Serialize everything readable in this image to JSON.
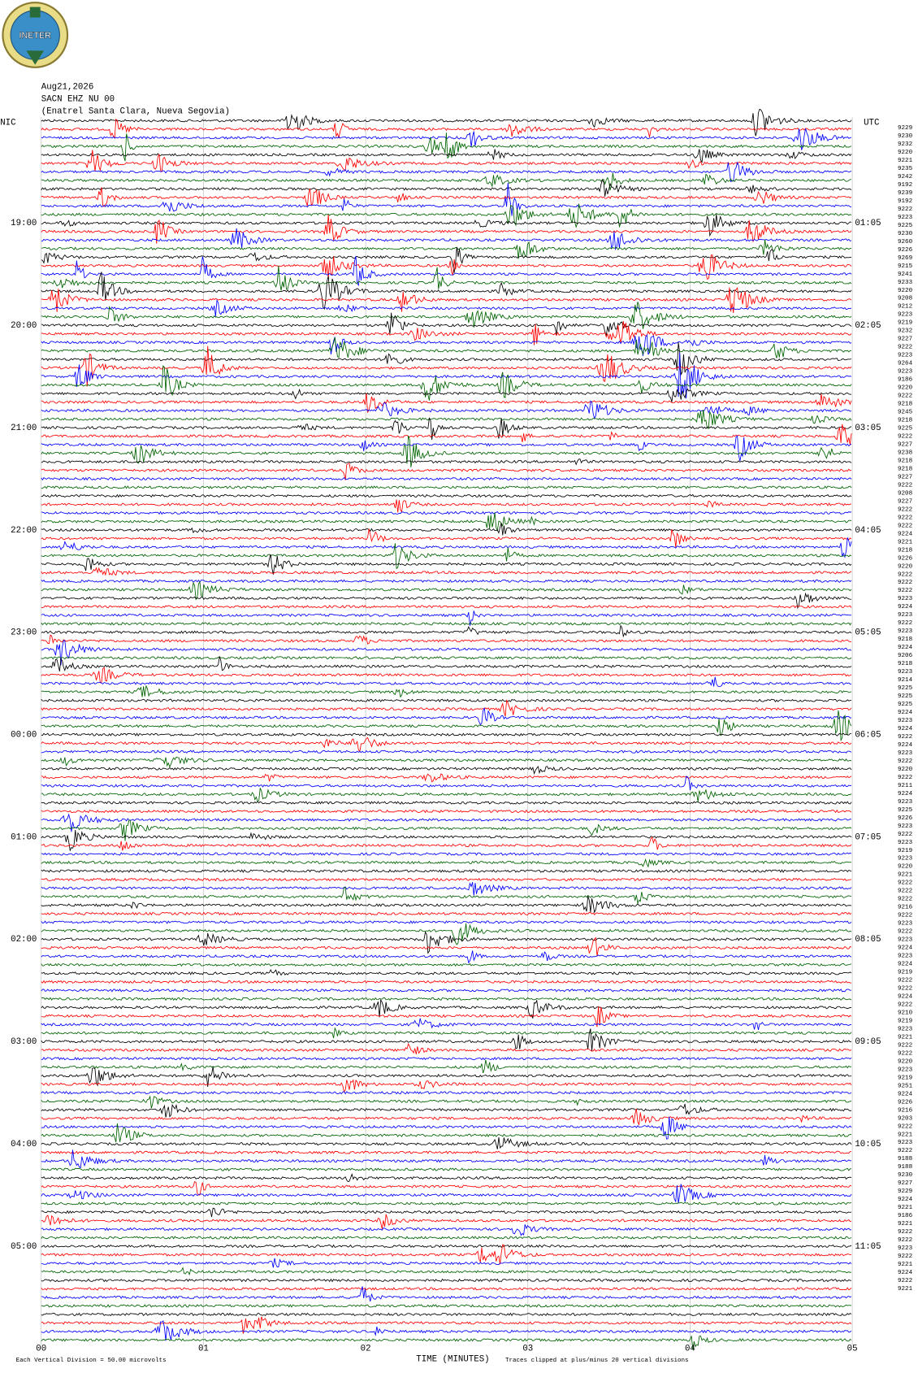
{
  "header": {
    "logo_text": "INETER",
    "date": "Aug21,2026",
    "station": "SACN EHZ NU 00",
    "location": "(Enatrel Santa Clara, Nueva Segovia)"
  },
  "left_label": "NIC",
  "right_label": "UTC",
  "left_times": [
    "19:00",
    "20:00",
    "21:00",
    "22:00",
    "23:00",
    "00:00",
    "01:00",
    "02:00",
    "03:00",
    "04:00",
    "05:00"
  ],
  "right_times": [
    "01:05",
    "02:05",
    "03:05",
    "04:05",
    "05:05",
    "06:05",
    "07:05",
    "08:05",
    "09:05",
    "10:05",
    "11:05"
  ],
  "row_values": [
    "9229",
    "9230",
    "9232",
    "9220",
    "9221",
    "9235",
    "9242",
    "9192",
    "9239",
    "9192",
    "9222",
    "9223",
    "9225",
    "9230",
    "9260",
    "9226",
    "9269",
    "9215",
    "9241",
    "9233",
    "9220",
    "9208",
    "9212",
    "9223",
    "9219",
    "9232",
    "9227",
    "9222",
    "9223",
    "9264",
    "9223",
    "9186",
    "9220",
    "9222",
    "9218",
    "9245",
    "9218",
    "9225",
    "9222",
    "9227",
    "9238",
    "9218",
    "9218",
    "9227",
    "9222",
    "9208",
    "9227",
    "9222",
    "9222",
    "9222",
    "9224",
    "9221",
    "9218",
    "9226",
    "9220",
    "9222",
    "9222",
    "9222",
    "9223",
    "9224",
    "9223",
    "9222",
    "9223",
    "9218",
    "9224",
    "9206",
    "9218",
    "9223",
    "9214",
    "9225",
    "9225",
    "9225",
    "9224",
    "9223",
    "9224",
    "9222",
    "9224",
    "9223",
    "9222",
    "9220",
    "9222",
    "9211",
    "9224",
    "9223",
    "9225",
    "9226",
    "9223",
    "9222",
    "9223",
    "9219",
    "9223",
    "9220",
    "9221",
    "9222",
    "9222",
    "9222",
    "9216",
    "9222",
    "9223",
    "9222",
    "9223",
    "9224",
    "9223",
    "9224",
    "9219",
    "9222",
    "9222",
    "9224",
    "9222",
    "9210",
    "9219",
    "9223",
    "9221",
    "9222",
    "9222",
    "9220",
    "9223",
    "9219",
    "9251",
    "9224",
    "9226",
    "9216",
    "9203",
    "9222",
    "9221",
    "9223",
    "9222",
    "9188",
    "9188",
    "9230",
    "9227",
    "9229",
    "9224",
    "9221",
    "9186",
    "9221",
    "9222",
    "9222",
    "9223",
    "9222",
    "9221",
    "9224",
    "9222",
    "9221"
  ],
  "x_axis": {
    "ticks": [
      "00",
      "01",
      "02",
      "03",
      "04",
      "05"
    ],
    "title": "TIME (MINUTES)"
  },
  "footer": {
    "division": "Each Vertical Division =   50.00 microvolts",
    "clip": "Traces clipped at plus/minus 20 vertical divisions"
  }
}
